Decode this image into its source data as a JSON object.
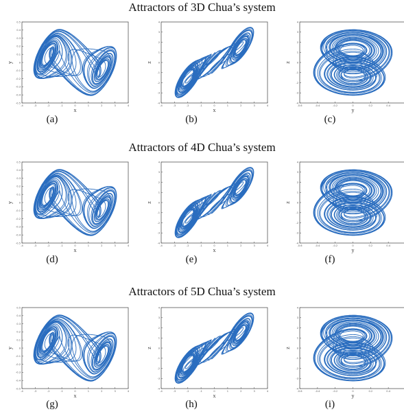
{
  "figure": {
    "accent_color": "#2a6dbf",
    "rows": [
      {
        "title": "Attractors of 3D Chua’s system",
        "panels": [
          {
            "caption": "(a)",
            "kind": "xy",
            "xlabel": "x",
            "ylabel": "y",
            "xticks": [
              "-4",
              "-3",
              "-2",
              "-1",
              "0",
              "1",
              "2",
              "3",
              "4"
            ],
            "yticks": [
              "-0.5",
              "-0.4",
              "-0.3",
              "-0.2",
              "-0.1",
              "0",
              "0.1",
              "0.2",
              "0.3",
              "0.4",
              "0.5"
            ]
          },
          {
            "caption": "(b)",
            "kind": "xz",
            "xlabel": "x",
            "ylabel": "z",
            "xticks": [
              "-4",
              "-3",
              "-2",
              "-1",
              "0",
              "1",
              "2",
              "3",
              "4"
            ],
            "yticks": [
              "-4",
              "-3",
              "-2",
              "-1",
              "0",
              "1",
              "2",
              "3",
              "4"
            ]
          },
          {
            "caption": "(c)",
            "kind": "yz",
            "xlabel": "y",
            "ylabel": "z",
            "xticks": [
              "-0.6",
              "-0.4",
              "-0.2",
              "0",
              "0.2",
              "0.4",
              "0.6"
            ],
            "yticks": [
              "-4",
              "-3",
              "-2",
              "-1",
              "0",
              "1",
              "2",
              "3",
              "4"
            ]
          }
        ]
      },
      {
        "title": "Attractors of 4D Chua’s system",
        "panels": [
          {
            "caption": "(d)",
            "kind": "xy",
            "xlabel": "x",
            "ylabel": "y",
            "xticks": [
              "-4",
              "-3",
              "-2",
              "-1",
              "0",
              "1",
              "2",
              "3",
              "4"
            ],
            "yticks": [
              "-0.5",
              "-0.4",
              "-0.3",
              "-0.2",
              "-0.1",
              "0",
              "0.1",
              "0.2",
              "0.3",
              "0.4",
              "0.5"
            ]
          },
          {
            "caption": "(e)",
            "kind": "xz",
            "xlabel": "x",
            "ylabel": "z",
            "xticks": [
              "-4",
              "-3",
              "-2",
              "-1",
              "0",
              "1",
              "2",
              "3",
              "4"
            ],
            "yticks": [
              "-4",
              "-3",
              "-2",
              "-1",
              "0",
              "1",
              "2",
              "3",
              "4"
            ]
          },
          {
            "caption": "(f)",
            "kind": "yz",
            "xlabel": "y",
            "ylabel": "z",
            "xticks": [
              "-0.6",
              "-0.4",
              "-0.2",
              "0",
              "0.2",
              "0.4",
              "0.6"
            ],
            "yticks": [
              "-4",
              "-3",
              "-2",
              "-1",
              "0",
              "1",
              "2",
              "3",
              "4"
            ]
          }
        ]
      },
      {
        "title": "Attractors of 5D Chua’s system",
        "panels": [
          {
            "caption": "(g)",
            "kind": "xy",
            "xlabel": "x",
            "ylabel": "y",
            "xticks": [
              "-4",
              "-3",
              "-2",
              "-1",
              "0",
              "1",
              "2",
              "3",
              "4"
            ],
            "yticks": [
              "-0.5",
              "-0.4",
              "-0.3",
              "-0.2",
              "-0.1",
              "0",
              "0.1",
              "0.2",
              "0.3",
              "0.4",
              "0.5"
            ]
          },
          {
            "caption": "(h)",
            "kind": "xz",
            "xlabel": "x",
            "ylabel": "z",
            "xticks": [
              "-4",
              "-3",
              "-2",
              "-1",
              "0",
              "1",
              "2",
              "3",
              "4"
            ],
            "yticks": [
              "-4",
              "-3",
              "-2",
              "-1",
              "0",
              "1",
              "2",
              "3",
              "4"
            ]
          },
          {
            "caption": "(i)",
            "kind": "yz",
            "xlabel": "y",
            "ylabel": "z",
            "xticks": [
              "-0.6",
              "-0.4",
              "-0.2",
              "0",
              "0.2",
              "0.4",
              "0.6"
            ],
            "yticks": [
              "-4",
              "-3",
              "-2",
              "-1",
              "0",
              "1",
              "2",
              "3",
              "4"
            ]
          }
        ]
      }
    ]
  },
  "chart_data": [
    {
      "type": "line",
      "title": "(a)",
      "xlabel": "x",
      "ylabel": "y",
      "xlim": [
        -4,
        4
      ],
      "ylim": [
        -0.5,
        0.5
      ],
      "grid": false
    },
    {
      "type": "line",
      "title": "(b)",
      "xlabel": "x",
      "ylabel": "z",
      "xlim": [
        -4,
        4
      ],
      "ylim": [
        -4,
        4
      ],
      "grid": false
    },
    {
      "type": "line",
      "title": "(c)",
      "xlabel": "y",
      "ylabel": "z",
      "xlim": [
        -0.6,
        0.6
      ],
      "ylim": [
        -4,
        4
      ],
      "grid": false
    },
    {
      "type": "line",
      "title": "(d)",
      "xlabel": "x",
      "ylabel": "y",
      "xlim": [
        -4,
        4
      ],
      "ylim": [
        -0.5,
        0.5
      ],
      "grid": false
    },
    {
      "type": "line",
      "title": "(e)",
      "xlabel": "x",
      "ylabel": "z",
      "xlim": [
        -4,
        4
      ],
      "ylim": [
        -4,
        4
      ],
      "grid": false
    },
    {
      "type": "line",
      "title": "(f)",
      "xlabel": "y",
      "ylabel": "z",
      "xlim": [
        -0.6,
        0.6
      ],
      "ylim": [
        -4,
        4
      ],
      "grid": false
    },
    {
      "type": "line",
      "title": "(g)",
      "xlabel": "x",
      "ylabel": "y",
      "xlim": [
        -4,
        4
      ],
      "ylim": [
        -0.5,
        0.5
      ],
      "grid": false
    },
    {
      "type": "line",
      "title": "(h)",
      "xlabel": "x",
      "ylabel": "z",
      "xlim": [
        -4,
        4
      ],
      "ylim": [
        -4,
        4
      ],
      "grid": false
    },
    {
      "type": "line",
      "title": "(i)",
      "xlabel": "y",
      "ylabel": "z",
      "xlim": [
        -0.6,
        0.6
      ],
      "ylim": [
        -4,
        4
      ],
      "grid": false
    }
  ]
}
